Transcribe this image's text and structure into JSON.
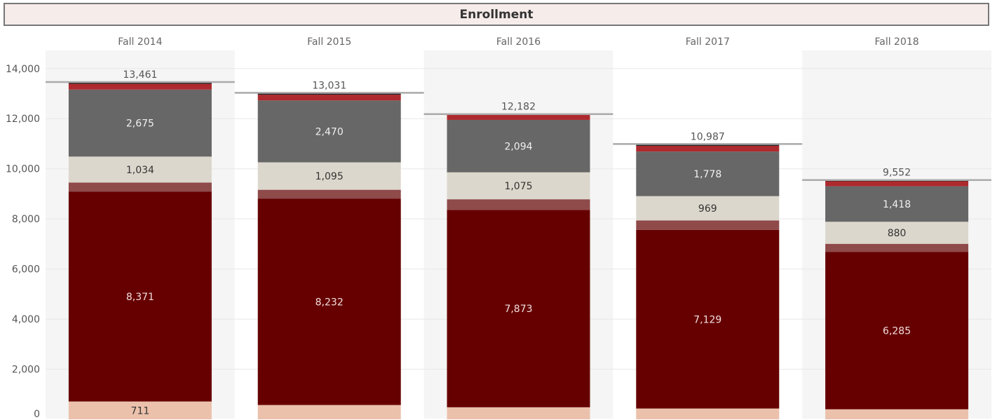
{
  "chart_data": {
    "type": "bar",
    "stacked": true,
    "title": "Enrollment",
    "categories": [
      "Fall 2014",
      "Fall 2015",
      "Fall 2016",
      "Fall 2017",
      "Fall 2018"
    ],
    "ylim": [
      0,
      14700
    ],
    "yticks": [
      0,
      2000,
      4000,
      6000,
      8000,
      10000,
      12000,
      14000
    ],
    "ytick_labels": [
      "0",
      "2,000",
      "4,000",
      "6,000",
      "8,000",
      "10,000",
      "12,000",
      "14,000"
    ],
    "grid": true,
    "legend": "none",
    "colors": [
      "#ebc1ac",
      "#660000",
      "#8f4a4a",
      "#dcd7cc",
      "#676767",
      "#ad2a2e",
      "#222222"
    ],
    "label_colors": [
      "#333333",
      "#f2dede",
      "#333333",
      "#333333",
      "#f0f0f0",
      "#ffffff",
      "#ffffff"
    ],
    "series": [
      {
        "values": [
          711,
          570,
          480,
          430,
          400
        ],
        "labels": [
          "711",
          "",
          "",
          "",
          ""
        ]
      },
      {
        "values": [
          8371,
          8232,
          7873,
          7129,
          6285
        ],
        "labels": [
          "8,371",
          "8,232",
          "7,873",
          "7,129",
          "6,285"
        ]
      },
      {
        "values": [
          370,
          360,
          430,
          380,
          320
        ],
        "labels": [
          "",
          "",
          "",
          "",
          ""
        ]
      },
      {
        "values": [
          1034,
          1095,
          1075,
          969,
          880
        ],
        "labels": [
          "1,034",
          "1,095",
          "1,075",
          "969",
          "880"
        ]
      },
      {
        "values": [
          2675,
          2470,
          2094,
          1778,
          1418
        ],
        "labels": [
          "2,675",
          "2,470",
          "2,094",
          "1,778",
          "1,418"
        ]
      },
      {
        "values": [
          230,
          230,
          210,
          230,
          199
        ],
        "labels": [
          "",
          "",
          "",
          "",
          ""
        ]
      },
      {
        "values": [
          70,
          74,
          20,
          71,
          50
        ],
        "labels": [
          "",
          "",
          "",
          "",
          ""
        ]
      }
    ],
    "totals": [
      13461,
      13031,
      12182,
      10987,
      9552
    ],
    "total_labels": [
      "13,461",
      "13,031",
      "12,182",
      "10,987",
      "9,552"
    ]
  }
}
